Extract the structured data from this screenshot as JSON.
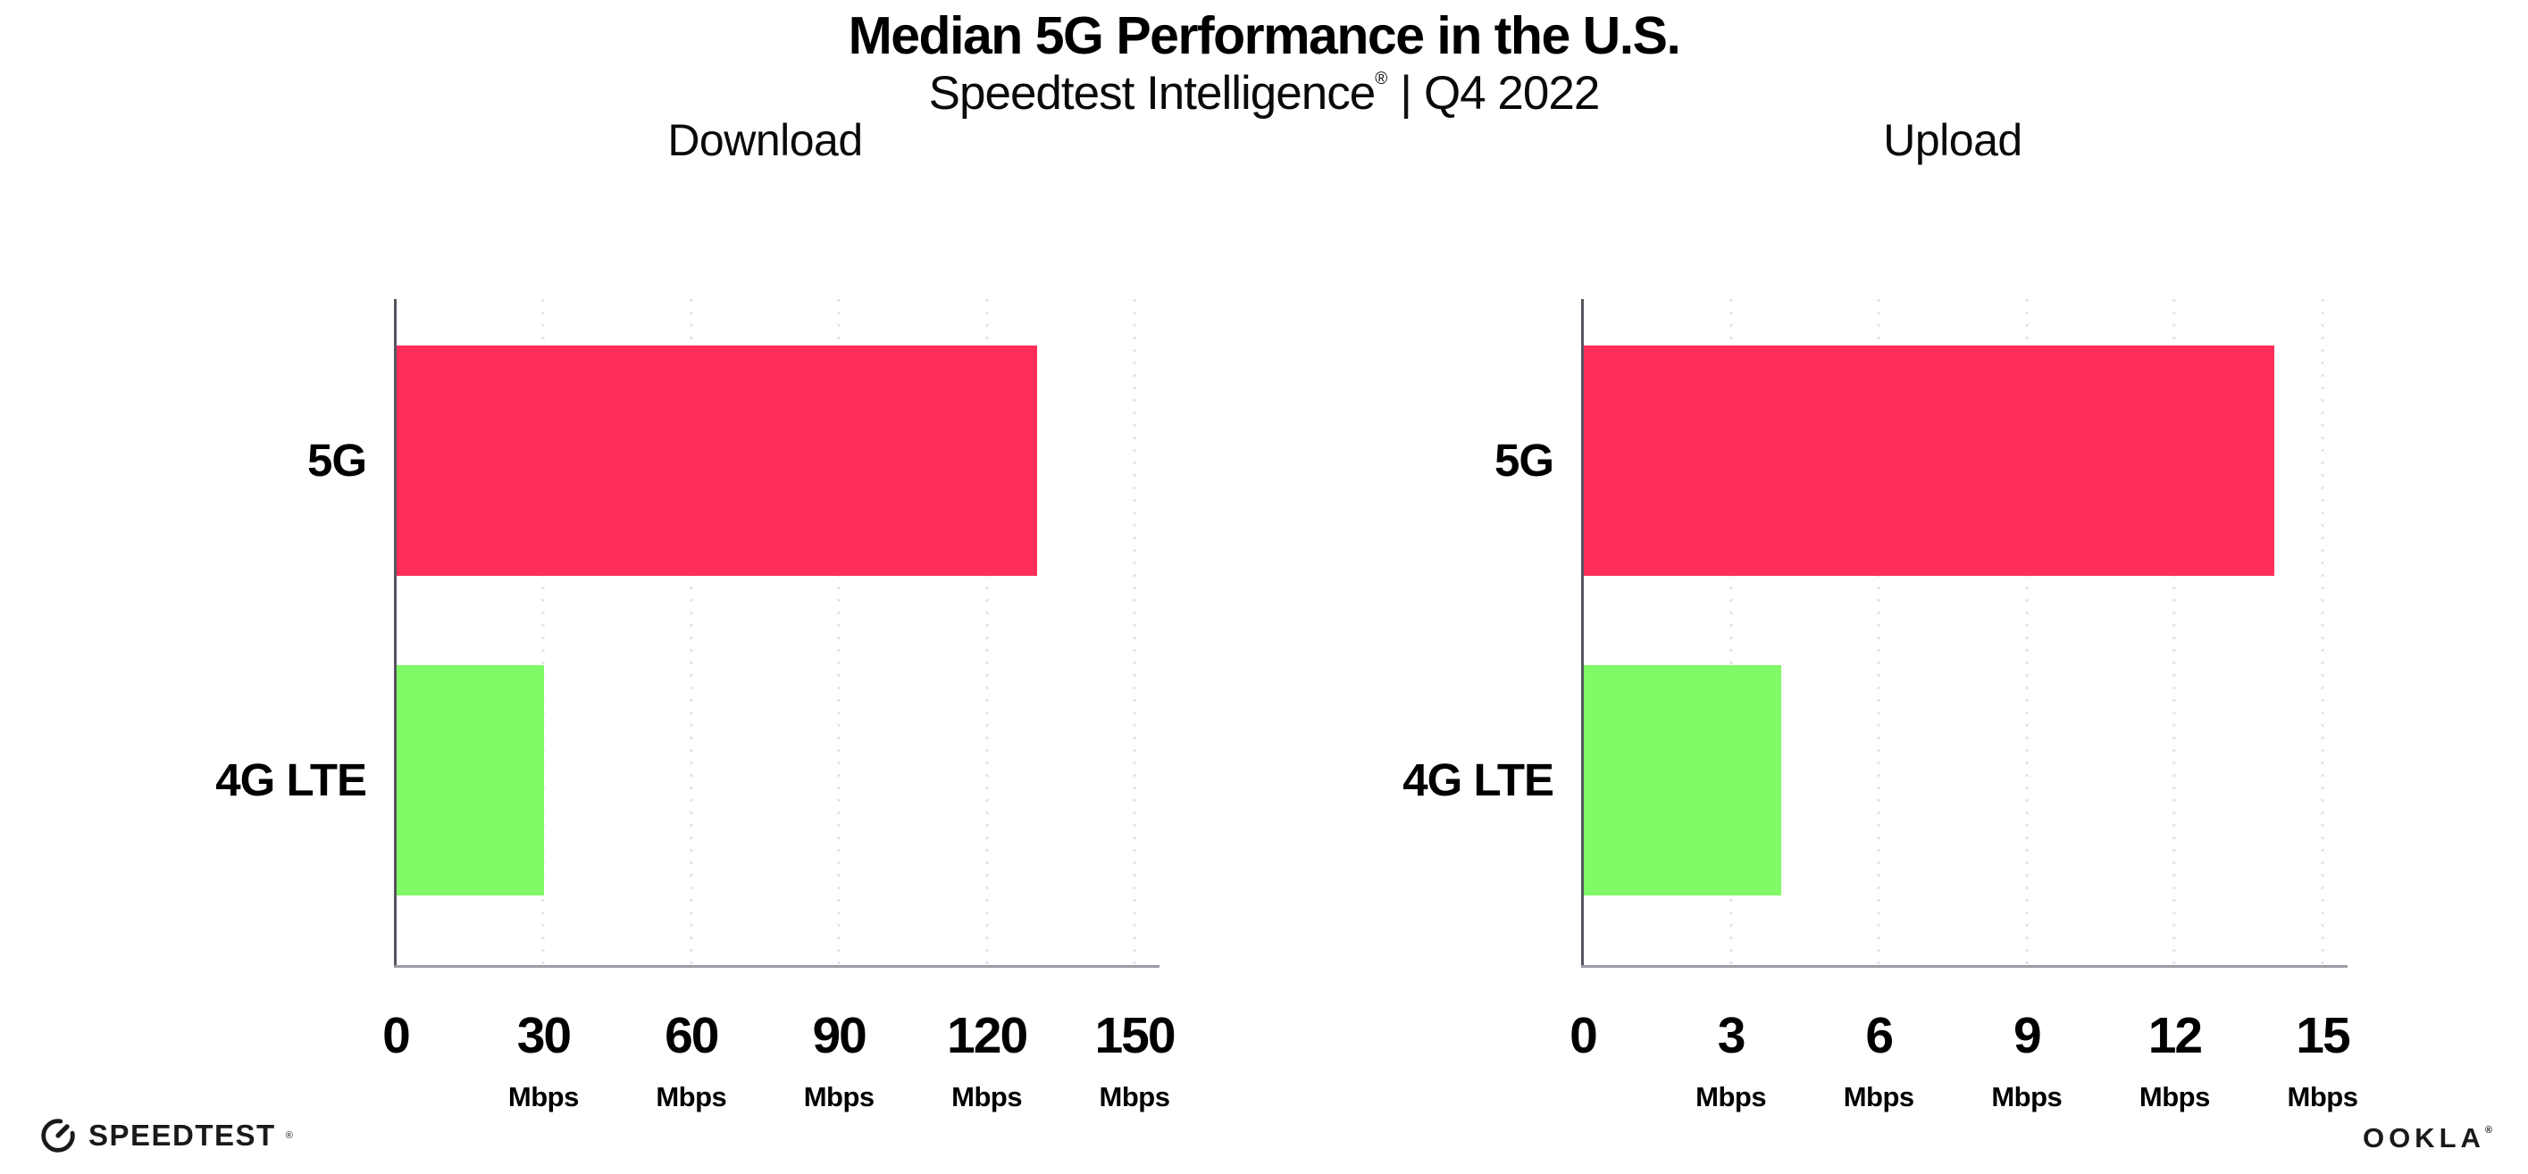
{
  "header": {
    "title": "Median 5G Performance in the U.S.",
    "subtitle_brand": "Speedtest Intelligence",
    "subtitle_reg": "®",
    "subtitle_separator": "|",
    "subtitle_period": "Q4 2022"
  },
  "footer": {
    "speedtest_label": "SPEEDTEST",
    "speedtest_reg": "®",
    "ookla_label": "OOKLA",
    "ookla_reg": "®"
  },
  "colors": {
    "bar_5g": "#ff2e59",
    "bar_4g_lte": "#80fa66",
    "gridline": "#e3e3ef",
    "y_axis": "#55555f",
    "x_axis": "#9b9ba3",
    "text": "#000000"
  },
  "chart_data": [
    {
      "type": "bar",
      "orientation": "horizontal",
      "title": "Download",
      "categories": [
        "5G",
        "4G LTE"
      ],
      "values": [
        130,
        30
      ],
      "unit": "Mbps",
      "xlim": [
        0,
        150
      ],
      "xticks": [
        0,
        30,
        60,
        90,
        120,
        150
      ],
      "tick_unit_label": "Mbps",
      "grid": "dotted-vertical",
      "legend": "none",
      "bar_colors": [
        "#ff2e59",
        "#80fa66"
      ]
    },
    {
      "type": "bar",
      "orientation": "horizontal",
      "title": "Upload",
      "categories": [
        "5G",
        "4G LTE"
      ],
      "values": [
        14,
        4
      ],
      "unit": "Mbps",
      "xlim": [
        0,
        15
      ],
      "xticks": [
        0,
        3,
        6,
        9,
        12,
        15
      ],
      "tick_unit_label": "Mbps",
      "grid": "dotted-vertical",
      "legend": "none",
      "bar_colors": [
        "#ff2e59",
        "#80fa66"
      ]
    }
  ]
}
